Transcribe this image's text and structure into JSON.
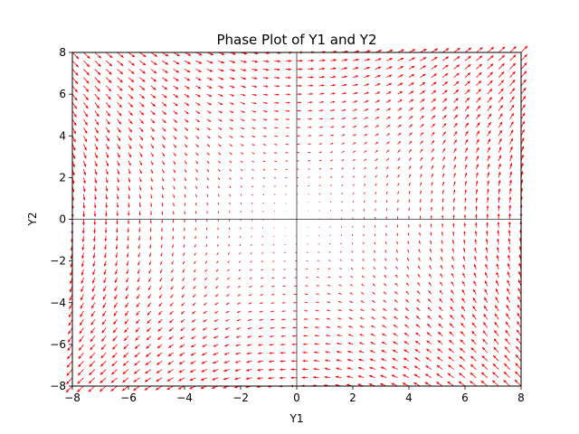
{
  "chart_data": {
    "type": "quiver",
    "title": "Phase Plot of Y1 and Y2",
    "xlabel": "Y1",
    "ylabel": "Y2",
    "xlim": [
      -8,
      8
    ],
    "ylim": [
      -8,
      8
    ],
    "xticks": [
      -8,
      -6,
      -4,
      -2,
      0,
      2,
      4,
      6,
      8
    ],
    "yticks": [
      -8,
      -6,
      -4,
      -2,
      0,
      2,
      4,
      6,
      8
    ],
    "grid": false,
    "reference_lines": {
      "x": 0,
      "y": 0
    },
    "vector_field": {
      "x_range": [
        -8,
        8
      ],
      "y_range": [
        -8,
        8
      ],
      "points_per_axis": 41,
      "dy1": "y2",
      "dy2": "y1",
      "arrow_color": "#ff0000"
    }
  }
}
